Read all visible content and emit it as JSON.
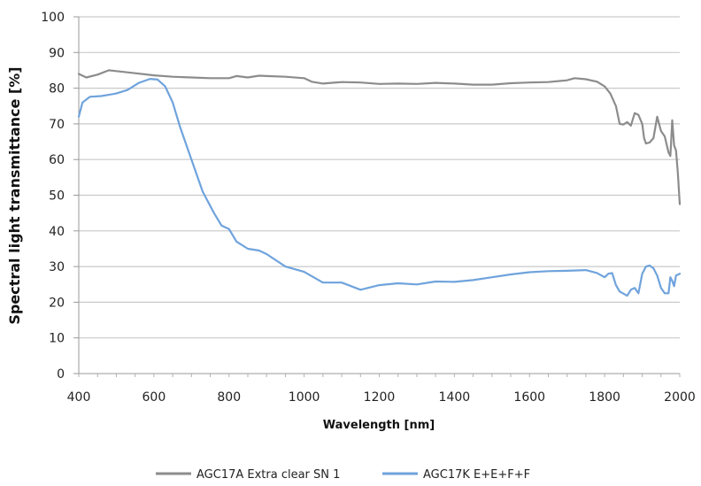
{
  "chart_data": {
    "type": "line",
    "xlabel": "Wavelength [nm]",
    "ylabel": "Spectral light transmittance [%]",
    "xlim": [
      400,
      2000
    ],
    "ylim": [
      0,
      100
    ],
    "x_ticks": [
      "400",
      "600",
      "800",
      "1000",
      "1200",
      "1400",
      "1600",
      "1800",
      "2000"
    ],
    "y_ticks": [
      "0",
      "10",
      "20",
      "30",
      "40",
      "50",
      "60",
      "70",
      "80",
      "90",
      "100"
    ],
    "grid": true,
    "legend": "bottom",
    "series": [
      {
        "name": "AGC17A Extra clear SN 1",
        "color": "#8c8c8c",
        "points": [
          [
            400,
            84.0
          ],
          [
            420,
            83.0
          ],
          [
            450,
            83.8
          ],
          [
            480,
            85.0
          ],
          [
            500,
            84.8
          ],
          [
            550,
            84.2
          ],
          [
            600,
            83.6
          ],
          [
            650,
            83.2
          ],
          [
            700,
            83.0
          ],
          [
            750,
            82.8
          ],
          [
            800,
            82.8
          ],
          [
            820,
            83.4
          ],
          [
            850,
            83.0
          ],
          [
            880,
            83.5
          ],
          [
            900,
            83.4
          ],
          [
            950,
            83.2
          ],
          [
            1000,
            82.8
          ],
          [
            1020,
            81.8
          ],
          [
            1050,
            81.3
          ],
          [
            1100,
            81.7
          ],
          [
            1150,
            81.6
          ],
          [
            1200,
            81.2
          ],
          [
            1250,
            81.3
          ],
          [
            1300,
            81.2
          ],
          [
            1350,
            81.5
          ],
          [
            1400,
            81.3
          ],
          [
            1450,
            81.0
          ],
          [
            1500,
            81.0
          ],
          [
            1550,
            81.4
          ],
          [
            1600,
            81.6
          ],
          [
            1650,
            81.7
          ],
          [
            1700,
            82.2
          ],
          [
            1720,
            82.8
          ],
          [
            1750,
            82.5
          ],
          [
            1780,
            81.8
          ],
          [
            1800,
            80.5
          ],
          [
            1815,
            78.5
          ],
          [
            1830,
            75.0
          ],
          [
            1840,
            70.0
          ],
          [
            1850,
            69.8
          ],
          [
            1860,
            70.5
          ],
          [
            1870,
            69.5
          ],
          [
            1880,
            73.0
          ],
          [
            1890,
            72.5
          ],
          [
            1900,
            70.0
          ],
          [
            1905,
            66.0
          ],
          [
            1910,
            64.5
          ],
          [
            1920,
            64.8
          ],
          [
            1930,
            66.0
          ],
          [
            1940,
            72.0
          ],
          [
            1950,
            68.0
          ],
          [
            1960,
            66.5
          ],
          [
            1970,
            62.0
          ],
          [
            1975,
            61.0
          ],
          [
            1980,
            71.0
          ],
          [
            1985,
            64.0
          ],
          [
            1990,
            62.5
          ],
          [
            1995,
            56.0
          ],
          [
            2000,
            47.5
          ]
        ]
      },
      {
        "name": "AGC17K E+E+F+F",
        "color": "#6fa3dc",
        "points": [
          [
            400,
            72.0
          ],
          [
            410,
            76.0
          ],
          [
            430,
            77.6
          ],
          [
            460,
            77.8
          ],
          [
            500,
            78.5
          ],
          [
            530,
            79.5
          ],
          [
            560,
            81.5
          ],
          [
            590,
            82.6
          ],
          [
            610,
            82.4
          ],
          [
            630,
            80.5
          ],
          [
            650,
            76.0
          ],
          [
            670,
            69.0
          ],
          [
            700,
            60.0
          ],
          [
            730,
            51.0
          ],
          [
            760,
            45.0
          ],
          [
            780,
            41.5
          ],
          [
            800,
            40.5
          ],
          [
            820,
            37.0
          ],
          [
            850,
            35.0
          ],
          [
            880,
            34.5
          ],
          [
            900,
            33.5
          ],
          [
            950,
            30.0
          ],
          [
            1000,
            28.5
          ],
          [
            1050,
            25.5
          ],
          [
            1100,
            25.5
          ],
          [
            1150,
            23.5
          ],
          [
            1200,
            24.8
          ],
          [
            1250,
            25.3
          ],
          [
            1300,
            25.0
          ],
          [
            1350,
            25.8
          ],
          [
            1400,
            25.7
          ],
          [
            1450,
            26.2
          ],
          [
            1500,
            27.0
          ],
          [
            1550,
            27.8
          ],
          [
            1600,
            28.4
          ],
          [
            1650,
            28.7
          ],
          [
            1700,
            28.8
          ],
          [
            1750,
            29.0
          ],
          [
            1780,
            28.2
          ],
          [
            1800,
            27.0
          ],
          [
            1810,
            28.0
          ],
          [
            1820,
            28.2
          ],
          [
            1830,
            24.8
          ],
          [
            1840,
            23.0
          ],
          [
            1860,
            21.8
          ],
          [
            1870,
            23.5
          ],
          [
            1880,
            24.0
          ],
          [
            1890,
            22.5
          ],
          [
            1900,
            28.0
          ],
          [
            1910,
            30.0
          ],
          [
            1920,
            30.3
          ],
          [
            1930,
            29.5
          ],
          [
            1940,
            27.5
          ],
          [
            1950,
            24.0
          ],
          [
            1960,
            22.5
          ],
          [
            1970,
            22.5
          ],
          [
            1975,
            27.0
          ],
          [
            1980,
            26.0
          ],
          [
            1985,
            24.5
          ],
          [
            1990,
            27.5
          ],
          [
            2000,
            28.0
          ]
        ]
      }
    ]
  }
}
